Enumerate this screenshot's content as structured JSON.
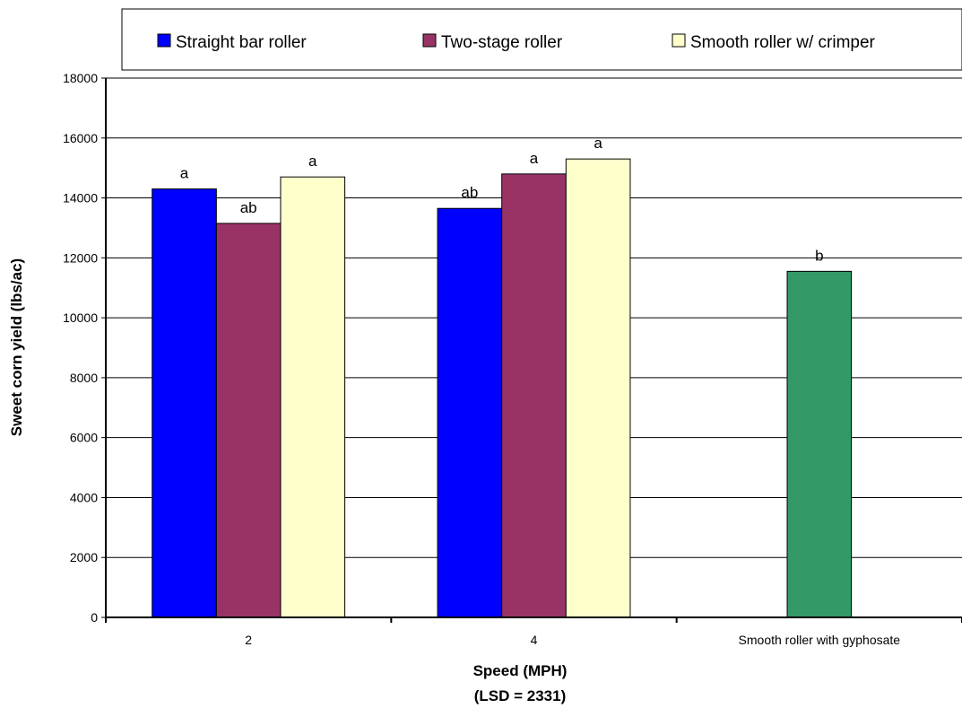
{
  "chart_data": {
    "type": "bar",
    "categories": [
      "2",
      "4",
      "Smooth roller with gyphosate"
    ],
    "series": [
      {
        "name": "Straight bar roller",
        "color": "#0000ff",
        "values": [
          14300,
          13650,
          null
        ],
        "labels": [
          "a",
          "ab",
          ""
        ]
      },
      {
        "name": "Two-stage roller",
        "color": "#993366",
        "values": [
          13150,
          14800,
          null
        ],
        "labels": [
          "ab",
          "a",
          ""
        ]
      },
      {
        "name": "Smooth roller w/ crimper",
        "color": "#ffffcc",
        "values": [
          14700,
          15300,
          null
        ],
        "labels": [
          "a",
          "a",
          ""
        ]
      },
      {
        "name": "",
        "color": "#339966",
        "values": [
          null,
          null,
          11550
        ],
        "labels": [
          "",
          "",
          "b"
        ]
      }
    ],
    "xlabel": "Speed (MPH)",
    "xlabel2": "(LSD = 2331)",
    "ylabel": "Sweet corn yield (lbs/ac)",
    "ylim": [
      0,
      18000
    ],
    "yticks": [
      0,
      2000,
      4000,
      6000,
      8000,
      10000,
      12000,
      14000,
      16000,
      18000
    ],
    "grid": true,
    "legend_position": "top"
  }
}
